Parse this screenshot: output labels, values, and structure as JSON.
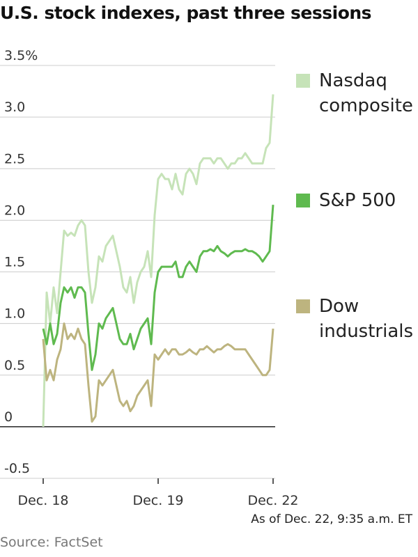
{
  "chart_data": {
    "type": "line",
    "title": "U.S. stock indexes, past three sessions",
    "note": "As of Dec. 22, 9:35 a.m. ET",
    "source": "Source: FactSet",
    "categories": [
      "Dec. 18",
      null,
      null,
      null,
      null,
      null,
      null,
      null,
      null,
      null,
      null,
      null,
      null,
      null,
      null,
      null,
      null,
      null,
      null,
      null,
      null,
      null,
      null,
      null,
      null,
      null,
      null,
      null,
      null,
      null,
      null,
      null,
      null,
      "Dec. 19",
      null,
      null,
      null,
      null,
      null,
      null,
      null,
      null,
      null,
      null,
      null,
      null,
      null,
      null,
      null,
      null,
      null,
      null,
      null,
      null,
      null,
      null,
      null,
      null,
      null,
      null,
      null,
      null,
      null,
      null,
      null,
      null,
      "Dec. 22"
    ],
    "ylim": [
      -0.5,
      3.5
    ],
    "yticks": [
      -0.5,
      0,
      0.5,
      {
        "value": 1,
        "label": "1.0"
      },
      1.5,
      {
        "value": 2,
        "label": "2.0"
      },
      2.5,
      {
        "value": 3,
        "label": "3.0"
      },
      {
        "value": 3.5,
        "label": "3.5%"
      }
    ],
    "grid": true,
    "series": [
      {
        "name": "Nasdaq composite",
        "color": "#c6e3b8",
        "values": [
          0,
          1.3,
          1.0,
          1.35,
          1.1,
          1.5,
          1.9,
          1.85,
          1.88,
          1.85,
          1.95,
          2.0,
          1.95,
          1.5,
          1.2,
          1.35,
          1.65,
          1.6,
          1.75,
          1.8,
          1.85,
          1.7,
          1.55,
          1.35,
          1.3,
          1.45,
          1.2,
          1.4,
          1.5,
          1.55,
          1.7,
          1.45,
          2.05,
          2.4,
          2.45,
          2.4,
          2.4,
          2.3,
          2.45,
          2.3,
          2.25,
          2.45,
          2.5,
          2.45,
          2.35,
          2.55,
          2.6,
          2.6,
          2.6,
          2.55,
          2.6,
          2.6,
          2.55,
          2.5,
          2.55,
          2.55,
          2.6,
          2.6,
          2.65,
          2.6,
          2.55,
          2.55,
          2.55,
          2.55,
          2.7,
          2.75,
          3.22
        ]
      },
      {
        "name": "S&P 500",
        "color": "#5fba4f",
        "values": [
          0.95,
          0.8,
          1.0,
          0.8,
          0.9,
          1.2,
          1.35,
          1.3,
          1.35,
          1.25,
          1.35,
          1.35,
          1.3,
          0.9,
          0.55,
          0.7,
          1.0,
          0.95,
          1.05,
          1.1,
          1.15,
          1.0,
          0.85,
          0.8,
          0.8,
          0.9,
          0.75,
          0.85,
          0.95,
          1.0,
          1.05,
          0.8,
          1.3,
          1.5,
          1.55,
          1.55,
          1.55,
          1.55,
          1.6,
          1.45,
          1.45,
          1.55,
          1.6,
          1.55,
          1.5,
          1.65,
          1.7,
          1.7,
          1.72,
          1.7,
          1.75,
          1.7,
          1.68,
          1.65,
          1.68,
          1.7,
          1.7,
          1.7,
          1.72,
          1.7,
          1.7,
          1.68,
          1.65,
          1.6,
          1.65,
          1.7,
          2.15
        ]
      },
      {
        "name": "Dow industrials",
        "color": "#bdb47f",
        "values": [
          0.85,
          0.45,
          0.55,
          0.45,
          0.65,
          0.75,
          1.0,
          0.85,
          0.9,
          0.85,
          0.95,
          0.85,
          0.8,
          0.4,
          0.05,
          0.1,
          0.45,
          0.4,
          0.45,
          0.5,
          0.55,
          0.4,
          0.25,
          0.2,
          0.25,
          0.15,
          0.2,
          0.3,
          0.35,
          0.4,
          0.45,
          0.2,
          0.7,
          0.65,
          0.7,
          0.75,
          0.7,
          0.75,
          0.75,
          0.7,
          0.7,
          0.72,
          0.75,
          0.72,
          0.7,
          0.75,
          0.75,
          0.78,
          0.75,
          0.72,
          0.75,
          0.75,
          0.78,
          0.8,
          0.78,
          0.75,
          0.75,
          0.75,
          0.75,
          0.7,
          0.65,
          0.6,
          0.55,
          0.5,
          0.5,
          0.55,
          0.95
        ]
      }
    ]
  }
}
